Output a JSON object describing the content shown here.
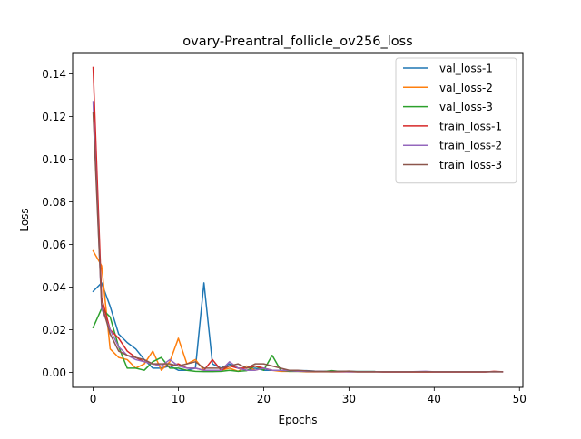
{
  "chart_data": {
    "type": "line",
    "title": "ovary-Preantral_follicle_ov256_loss",
    "xlabel": "Epochs",
    "ylabel": "Loss",
    "xlim": [
      -2.4,
      50.4
    ],
    "ylim": [
      -0.007,
      0.15
    ],
    "xticks": [
      0,
      10,
      20,
      30,
      40,
      50
    ],
    "xtick_labels": [
      "0",
      "10",
      "20",
      "30",
      "40",
      "50"
    ],
    "yticks": [
      0.0,
      0.02,
      0.04,
      0.06,
      0.08,
      0.1,
      0.12,
      0.14
    ],
    "ytick_labels": [
      "0.00",
      "0.02",
      "0.04",
      "0.06",
      "0.08",
      "0.10",
      "0.12",
      "0.14"
    ],
    "grid": false,
    "legend_position": "top-right",
    "series": [
      {
        "name": "val_loss-1",
        "color": "#1f77b4",
        "x": [
          0,
          1,
          2,
          3,
          4,
          5,
          6,
          7,
          8,
          9,
          10,
          11,
          12,
          13,
          14,
          15,
          16,
          17,
          18,
          19,
          20,
          21,
          22,
          23,
          24,
          25,
          26,
          27,
          28,
          29,
          30,
          31,
          32,
          33
        ],
        "y": [
          0.038,
          0.042,
          0.031,
          0.018,
          0.014,
          0.011,
          0.006,
          0.002,
          0.002,
          0.003,
          0.001,
          0.001,
          0.002,
          0.042,
          0.004,
          0.002,
          0.004,
          0.002,
          0.001,
          0.002,
          0.001,
          0.001,
          0.001,
          0.001,
          0.0008,
          0.0008,
          0.0006,
          0.0005,
          0.0006,
          0.0005,
          0.0005,
          0.0004,
          0.0004,
          0.0004
        ]
      },
      {
        "name": "val_loss-2",
        "color": "#ff7f0e",
        "x": [
          0,
          1,
          2,
          3,
          4,
          5,
          6,
          7,
          8,
          9,
          10,
          11,
          12,
          13,
          14,
          15,
          16,
          17,
          18,
          19,
          20,
          21,
          22,
          23,
          24,
          25,
          26,
          27,
          28,
          29,
          30,
          31,
          32,
          33
        ],
        "y": [
          0.057,
          0.05,
          0.011,
          0.007,
          0.006,
          0.002,
          0.004,
          0.01,
          0.001,
          0.005,
          0.016,
          0.004,
          0.006,
          0.001,
          0.0005,
          0.001,
          0.002,
          0.0005,
          0.003,
          0.001,
          0.002,
          0.001,
          0.0005,
          0.0005,
          0.0005,
          0.0003,
          0.0003,
          0.0003,
          0.0003,
          0.0003,
          0.0003,
          0.0003,
          0.0003,
          0.0003
        ]
      },
      {
        "name": "val_loss-3",
        "color": "#2ca02c",
        "x": [
          0,
          1,
          2,
          3,
          4,
          5,
          6,
          7,
          8,
          9,
          10,
          11,
          12,
          13,
          14,
          15,
          16,
          17,
          18,
          19,
          20,
          21,
          22,
          23,
          24,
          25,
          26,
          27,
          28,
          29,
          30,
          31,
          32,
          33
        ],
        "y": [
          0.021,
          0.03,
          0.026,
          0.012,
          0.002,
          0.002,
          0.001,
          0.005,
          0.007,
          0.002,
          0.002,
          0.001,
          0.0005,
          0.0004,
          0.0004,
          0.0005,
          0.001,
          0.0005,
          0.0008,
          0.003,
          0.001,
          0.008,
          0.001,
          0.0005,
          0.0005,
          0.0005,
          0.0004,
          0.0004,
          0.0008,
          0.0004,
          0.0004,
          0.0004,
          0.0004,
          0.0004
        ]
      },
      {
        "name": "train_loss-1",
        "color": "#d62728",
        "x": [
          0,
          1,
          2,
          3,
          4,
          5,
          6,
          7,
          8,
          9,
          10,
          11,
          12,
          13,
          14,
          15,
          16,
          17,
          18,
          19,
          20,
          21,
          22,
          23,
          24,
          25,
          26,
          27,
          28,
          29,
          30,
          31,
          32,
          33,
          34,
          35,
          36,
          37,
          38,
          39,
          40,
          41,
          42,
          43,
          44,
          45,
          46,
          47,
          48
        ],
        "y": [
          0.143,
          0.035,
          0.02,
          0.016,
          0.01,
          0.007,
          0.005,
          0.004,
          0.003,
          0.003,
          0.004,
          0.002,
          0.002,
          0.001,
          0.006,
          0.001,
          0.003,
          0.002,
          0.002,
          0.003,
          0.002,
          0.001,
          0.001,
          0.0008,
          0.0006,
          0.0005,
          0.0004,
          0.0004,
          0.0003,
          0.0003,
          0.0003,
          0.0003,
          0.0003,
          0.0003,
          0.0002,
          0.0002,
          0.0002,
          0.0002,
          0.0002,
          0.0002,
          0.0002,
          0.0002,
          0.0002,
          0.0002,
          0.0002,
          0.0002,
          0.0002,
          0.0005,
          0.0003
        ]
      },
      {
        "name": "train_loss-2",
        "color": "#9467bd",
        "x": [
          0,
          1,
          2,
          3,
          4,
          5,
          6,
          7,
          8,
          9,
          10,
          11,
          12,
          13,
          14,
          15,
          16,
          17,
          18,
          19,
          20,
          21,
          22,
          23,
          24,
          25,
          26,
          27,
          28,
          29,
          30,
          31,
          32,
          33,
          34,
          35,
          36,
          37,
          38,
          39,
          40,
          41,
          42,
          43,
          44,
          45,
          46,
          47,
          48
        ],
        "y": [
          0.127,
          0.03,
          0.02,
          0.012,
          0.008,
          0.006,
          0.005,
          0.004,
          0.003,
          0.006,
          0.003,
          0.002,
          0.002,
          0.001,
          0.001,
          0.001,
          0.005,
          0.002,
          0.001,
          0.001,
          0.002,
          0.001,
          0.001,
          0.0008,
          0.0006,
          0.0005,
          0.0005,
          0.0004,
          0.0004,
          0.0004,
          0.0003,
          0.0003,
          0.0003,
          0.0003,
          0.0003,
          0.0003,
          0.0003,
          0.0003,
          0.0004,
          0.0005,
          0.0003,
          0.0003,
          0.0003,
          0.0003,
          0.0003,
          0.0003,
          0.0003,
          0.0003,
          0.0003
        ]
      },
      {
        "name": "train_loss-3",
        "color": "#8c564b",
        "x": [
          0,
          1,
          2,
          3,
          4,
          5,
          6,
          7,
          8,
          9,
          10,
          11,
          12,
          13,
          14,
          15,
          16,
          17,
          18,
          19,
          20,
          21,
          22,
          23,
          24,
          25,
          26,
          27,
          28,
          29,
          30,
          31,
          32,
          33,
          34,
          35,
          36,
          37,
          38,
          39,
          40,
          41,
          42,
          43,
          44,
          45,
          46,
          47,
          48
        ],
        "y": [
          0.122,
          0.032,
          0.018,
          0.01,
          0.008,
          0.007,
          0.006,
          0.004,
          0.004,
          0.004,
          0.003,
          0.004,
          0.005,
          0.002,
          0.002,
          0.002,
          0.003,
          0.004,
          0.002,
          0.004,
          0.004,
          0.003,
          0.002,
          0.001,
          0.001,
          0.0007,
          0.0005,
          0.0004,
          0.0004,
          0.0005,
          0.0006,
          0.0003,
          0.0003,
          0.0003,
          0.0003,
          0.0003,
          0.0003,
          0.0003,
          0.0003,
          0.0003,
          0.0003,
          0.0003,
          0.0003,
          0.0003,
          0.0003,
          0.0003,
          0.0003,
          0.0003,
          0.0003
        ]
      }
    ]
  }
}
